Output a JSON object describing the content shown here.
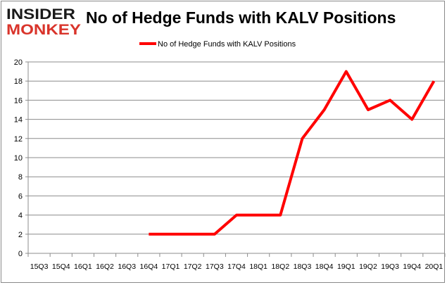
{
  "logo": {
    "line1": "INSIDER",
    "line2": "MONKEY",
    "colors": {
      "line1": "#1a1a1a",
      "line2": "#d9342b"
    }
  },
  "chart_data": {
    "type": "line",
    "title": "No of Hedge Funds with KALV Positions",
    "categories": [
      "15Q3",
      "15Q4",
      "16Q1",
      "16Q2",
      "16Q3",
      "16Q4",
      "17Q1",
      "17Q2",
      "17Q3",
      "17Q4",
      "18Q1",
      "18Q2",
      "18Q3",
      "18Q4",
      "19Q1",
      "19Q2",
      "19Q3",
      "19Q4",
      "20Q1"
    ],
    "series": [
      {
        "name": "No of Hedge Funds with KALV Positions",
        "color": "#ff0000",
        "values": [
          null,
          null,
          null,
          null,
          null,
          2,
          2,
          2,
          2,
          4,
          4,
          4,
          12,
          15,
          19,
          15,
          16,
          14,
          18
        ]
      }
    ],
    "yticks": [
      0,
      2,
      4,
      6,
      8,
      10,
      12,
      14,
      16,
      18,
      20
    ],
    "ylim": [
      0,
      20
    ],
    "grid": true,
    "legend": "top-center",
    "xlabel": "",
    "ylabel": ""
  }
}
